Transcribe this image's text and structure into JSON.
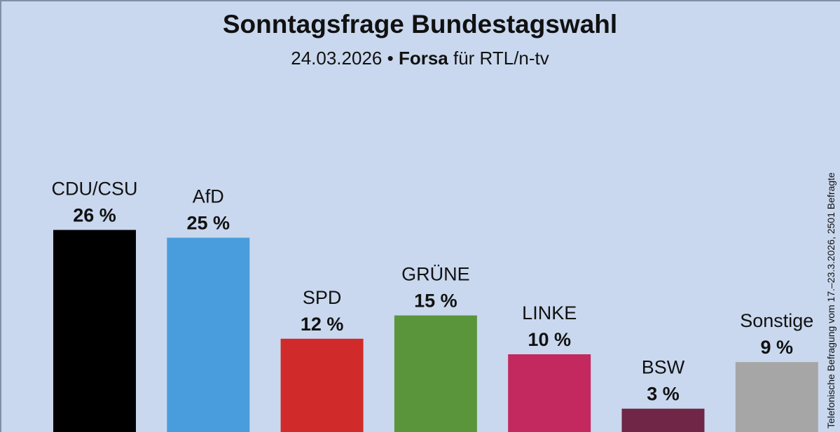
{
  "header": {
    "title": "Sonntagsfrage Bundestagswahl",
    "subtitle_date": "24.03.2026",
    "subtitle_separator": " • ",
    "subtitle_institute": "Forsa",
    "subtitle_client": " für RTL/n-tv"
  },
  "side_note": "Telefonische Befragung vom 17.–23.3.2026, 2501 Befragte",
  "chart_data": {
    "type": "bar",
    "title": "Sonntagsfrage Bundestagswahl",
    "subtitle": "24.03.2026 • Forsa für RTL/n-tv",
    "categories": [
      "CDU/CSU",
      "AfD",
      "SPD",
      "GRÜNE",
      "LINKE",
      "BSW",
      "Sonstige"
    ],
    "values": [
      26,
      25,
      12,
      15,
      10,
      3,
      9
    ],
    "value_labels": [
      "26 %",
      "25 %",
      "12 %",
      "15 %",
      "10 %",
      "3 %",
      "9 %"
    ],
    "colors": [
      "#000000",
      "#4a9ddc",
      "#d12a2a",
      "#5a953b",
      "#c3285e",
      "#6f2647",
      "#a6a6a6"
    ],
    "xlabel": "",
    "ylabel": "",
    "grid": false,
    "legend": "none"
  }
}
